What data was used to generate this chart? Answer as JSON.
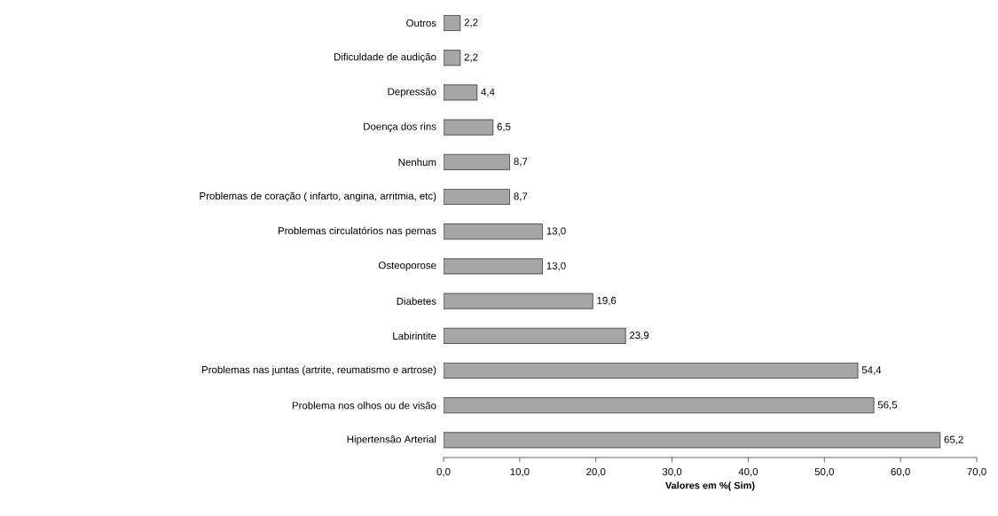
{
  "chart_data": {
    "type": "bar",
    "orientation": "horizontal",
    "categories": [
      "Outros",
      "Dificuldade de audição",
      "Depressão",
      "Doença dos rins",
      "Nenhum",
      "Problemas de coração ( infarto, angina, arritmia, etc)",
      "Problemas circulatórios nas pernas",
      "Osteoporose",
      "Diabetes",
      "Labirintite",
      "Problemas nas juntas (artrite, reumatismo e artrose)",
      "Problema nos olhos ou de visão",
      "Hipertensão Arterial"
    ],
    "values": [
      2.2,
      2.2,
      4.4,
      6.5,
      8.7,
      8.7,
      13.0,
      13.0,
      19.6,
      23.9,
      54.4,
      56.5,
      65.2
    ],
    "value_labels": [
      "2,2",
      "2,2",
      "4,4",
      "6,5",
      "8,7",
      "8,7",
      "13,0",
      "13,0",
      "19,6",
      "23,9",
      "54,4",
      "56,5",
      "65,2"
    ],
    "color": "#a6a6a6",
    "xlabel": "Valores em %( Sim)",
    "xlim": [
      0,
      70
    ],
    "xticks": [
      {
        "value": 0,
        "label": "0,0"
      },
      {
        "value": 10,
        "label": "10,0"
      },
      {
        "value": 20,
        "label": "20,0"
      },
      {
        "value": 30,
        "label": "30,0"
      },
      {
        "value": 40,
        "label": "40,0"
      },
      {
        "value": 50,
        "label": "50,0"
      },
      {
        "value": 60,
        "label": "60,0"
      },
      {
        "value": 70,
        "label": "70,0"
      }
    ]
  }
}
